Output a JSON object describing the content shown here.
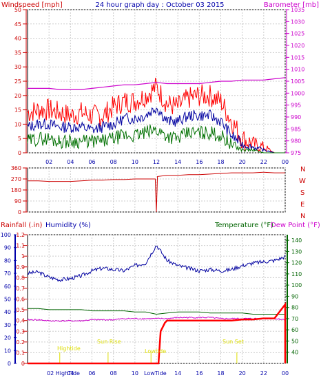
{
  "header": {
    "left_title": "Windspeed [mph]",
    "center_title": "24 hour graph day : October 03 2015",
    "right_title": "Barometer [mb]"
  },
  "bottom_header": {
    "rainfall": "Rainfall (.in)",
    "humidity": "Humidity (%)",
    "temperature": "Temperature (°F)",
    "dewpoint": "Dew Point (°F)"
  },
  "tide_labels": {
    "hightide": "Hightide",
    "sunrise": "Sun Rise",
    "lowtide": "Lowtide",
    "sunset": "Sun Set",
    "bottom_left": "02 HighTide",
    "bottom_mid": "LowTide"
  },
  "colors": {
    "gust": "#ff0000",
    "wind_avg": "#0000a0",
    "wind_low": "#007000",
    "barometer": "#cc00cc",
    "direction": "#cc0000",
    "humidity": "#0000a0",
    "temperature": "#006400",
    "dewpoint": "#cc00cc",
    "rain": "#ff0000",
    "axis_left": "#cc0000",
    "axis_right": "#cc00cc",
    "axis_green": "#006400",
    "axis_blue": "#0000aa",
    "tide": "#dddd00"
  },
  "chart_data": [
    {
      "type": "line",
      "x_ticks": [
        "02",
        "04",
        "06",
        "08",
        "10",
        "12",
        "14",
        "16",
        "18",
        "20",
        "22",
        "00"
      ],
      "x": [
        0,
        1,
        2,
        3,
        4,
        5,
        6,
        7,
        8,
        9,
        10,
        11,
        12,
        13,
        14,
        15,
        16,
        17,
        18,
        19,
        20,
        21,
        22,
        23,
        24
      ],
      "ylim_left": [
        0,
        50
      ],
      "y_ticks_left": [
        "50",
        "45",
        "40",
        "35",
        "30",
        "25",
        "20",
        "15",
        "10",
        "5",
        "0"
      ],
      "ylim_right": [
        975,
        1035
      ],
      "y_ticks_right": [
        "1035",
        "1030",
        "1025",
        "1020",
        "1015",
        "1010",
        "1005",
        "1000",
        "995",
        "990",
        "985",
        "980",
        "975"
      ],
      "series": [
        {
          "key": "gust",
          "values": [
            14,
            15,
            15,
            14,
            13,
            14,
            13,
            13,
            16,
            18,
            18,
            20,
            23,
            17,
            16,
            19,
            20,
            20,
            18,
            11,
            5,
            3,
            2,
            0,
            0
          ]
        },
        {
          "key": "wind_avg",
          "values": [
            9,
            10,
            10,
            9,
            9,
            9,
            8,
            9,
            10,
            12,
            12,
            13,
            16,
            11,
            11,
            13,
            13,
            13,
            11,
            6,
            3,
            2,
            1,
            0,
            0
          ]
        },
        {
          "key": "wind_low",
          "values": [
            4,
            5,
            5,
            4,
            4,
            4,
            4,
            4,
            5,
            6,
            6,
            7,
            8,
            6,
            5,
            7,
            7,
            7,
            6,
            3,
            1,
            1,
            0,
            0,
            0
          ]
        },
        {
          "key": "barometer",
          "values": [
            1002,
            1002,
            1002,
            1001.5,
            1001.5,
            1001.5,
            1002,
            1002.5,
            1003,
            1003.5,
            1003.5,
            1004,
            1004.5,
            1004,
            1004,
            1004,
            1004,
            1004.5,
            1005,
            1005,
            1005.5,
            1005.5,
            1005.5,
            1006,
            1006.5
          ]
        }
      ]
    },
    {
      "type": "line",
      "ylim": [
        0,
        360
      ],
      "y_ticks": [
        "360",
        "270",
        "180",
        "90",
        "0"
      ],
      "compass": [
        "N",
        "W",
        "S",
        "E",
        "N"
      ],
      "series": [
        {
          "key": "direction",
          "values": [
            255,
            255,
            250,
            250,
            250,
            255,
            260,
            260,
            265,
            265,
            270,
            270,
            0,
            300,
            300,
            305,
            305,
            310,
            315,
            320,
            320,
            320,
            325,
            320,
            320
          ]
        }
      ]
    },
    {
      "type": "line",
      "ylim_left": [
        0,
        1.2
      ],
      "y_ticks_rain": [
        "1.2",
        "1.1",
        "1",
        "0.9",
        "0.8",
        "0.7",
        "0.6",
        "0.5",
        "0.4",
        "0.3",
        "0.2",
        "0.1",
        "0"
      ],
      "y_ticks_humidity": [
        "100",
        "90",
        "80",
        "70",
        "60",
        "50",
        "40",
        "30",
        "20",
        "10",
        "0"
      ],
      "ylim_temp": [
        30,
        145
      ],
      "y_ticks_temp": [
        "140",
        "130",
        "120",
        "110",
        "100",
        "90",
        "80",
        "70",
        "60",
        "50",
        "40"
      ],
      "series": [
        {
          "key": "humidity",
          "values": [
            70,
            71,
            67,
            65,
            66,
            68,
            72,
            74,
            73,
            72,
            76,
            78,
            92,
            80,
            76,
            74,
            72,
            73,
            72,
            73,
            76,
            78,
            79,
            80,
            83
          ]
        },
        {
          "key": "temperature",
          "values": [
            79,
            79,
            78,
            78,
            78,
            78,
            77,
            77,
            77,
            77,
            76,
            76,
            74,
            75,
            76,
            76,
            76,
            75,
            75,
            75,
            75,
            74,
            74,
            74,
            74
          ]
        },
        {
          "key": "dewpoint",
          "values": [
            69,
            69,
            68,
            68,
            68,
            68,
            69,
            69,
            69,
            70,
            70,
            70,
            70,
            70,
            71,
            71,
            71,
            71,
            70,
            70,
            70,
            70,
            70,
            70,
            69
          ]
        },
        {
          "key": "rain",
          "values": [
            0,
            0,
            0,
            0,
            0,
            0,
            0,
            0,
            0,
            0,
            0,
            0,
            0,
            0.4,
            0.4,
            0.4,
            0.4,
            0.4,
            0.4,
            0.4,
            0.41,
            0.41,
            0.42,
            0.42,
            0.55
          ]
        }
      ]
    }
  ]
}
